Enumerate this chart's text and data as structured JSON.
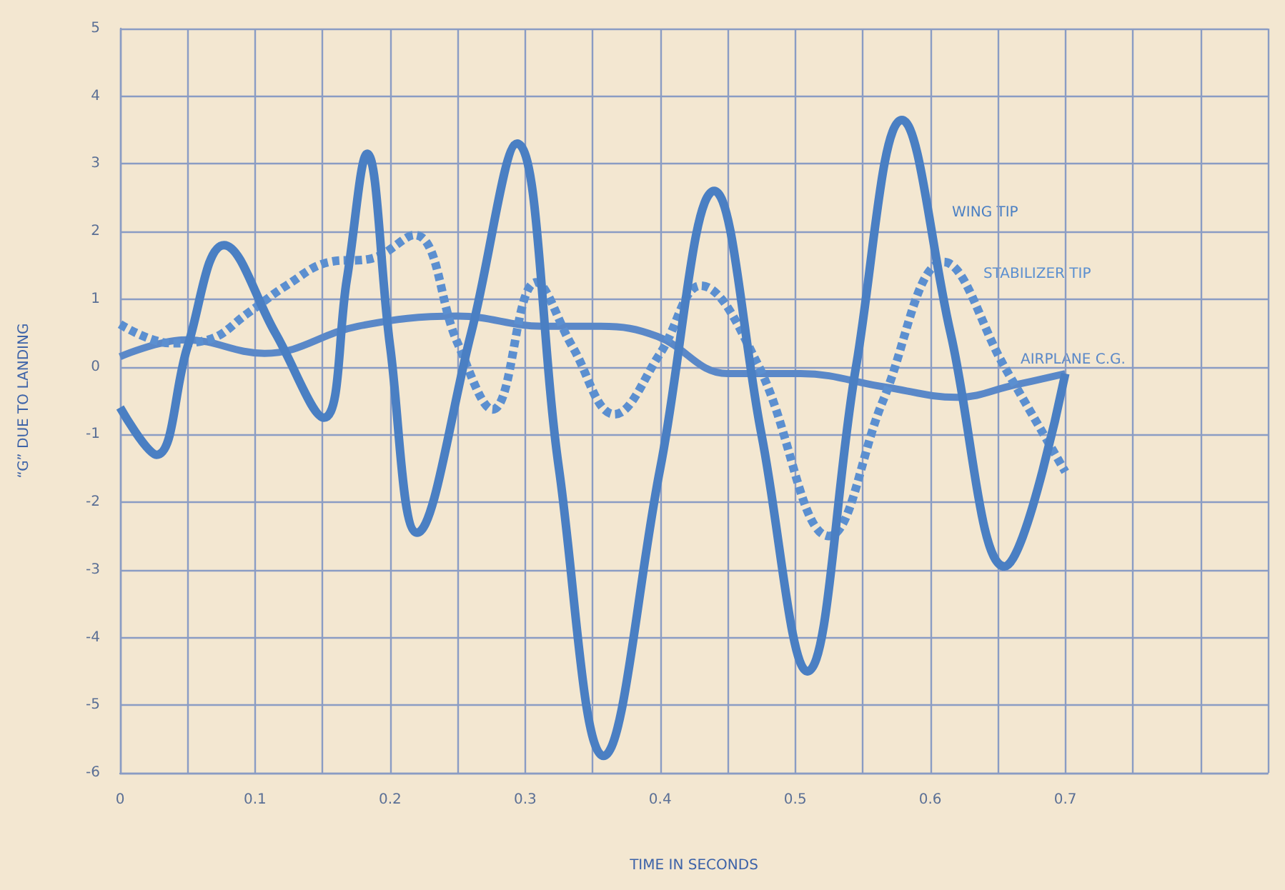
{
  "chart_data": {
    "type": "line",
    "xlabel": "TIME IN SECONDS",
    "ylabel": "“G” DUE TO LANDING",
    "xlim": [
      0,
      0.85
    ],
    "ylim": [
      -6,
      5
    ],
    "xticks": [
      0,
      {
        "value": 0.05,
        "label": null
      },
      0.1,
      {
        "value": 0.15,
        "label": null
      },
      0.2,
      {
        "value": 0.25,
        "label": null
      },
      0.3,
      {
        "value": 0.35,
        "label": null
      },
      0.4,
      {
        "value": 0.45,
        "label": null
      },
      0.5,
      {
        "value": 0.55,
        "label": null
      },
      0.6,
      {
        "value": 0.65,
        "label": null
      },
      0.7,
      {
        "value": 0.75,
        "label": null
      },
      {
        "value": 0.8,
        "label": null
      },
      {
        "value": 0.85,
        "label": null
      }
    ],
    "yticks": [
      -6,
      -5,
      -4,
      -3,
      -2,
      -1,
      0,
      1,
      2,
      3,
      4,
      5
    ],
    "grid": true,
    "legend": false,
    "marker": "none",
    "series": [
      {
        "name": "WING TIP",
        "color": "#4a7fc3",
        "line_style": "solid",
        "x": [
          0,
          0.027,
          0.05,
          0.077,
          0.115,
          0.151,
          0.168,
          0.183,
          0.2,
          0.22,
          0.26,
          0.294,
          0.325,
          0.358,
          0.4,
          0.44,
          0.475,
          0.509,
          0.545,
          0.579,
          0.615,
          0.655,
          0.7
        ],
        "values": [
          -0.6,
          -1.3,
          0.3,
          1.8,
          0.5,
          -0.75,
          1.3,
          3.15,
          0.3,
          -2.45,
          0.5,
          3.3,
          -1.5,
          -5.75,
          -1.5,
          2.6,
          -1.0,
          -4.5,
          0,
          3.65,
          0.5,
          -2.95,
          -0.1
        ]
      },
      {
        "name": "STABILIZER TIP",
        "color": "#5b8fd0",
        "line_style": "dashed",
        "x": [
          0,
          0.038,
          0.065,
          0.095,
          0.123,
          0.155,
          0.186,
          0.218,
          0.25,
          0.276,
          0.308,
          0.335,
          0.366,
          0.4,
          0.43,
          0.472,
          0.525,
          0.565,
          0.61,
          0.655,
          0.7
        ],
        "values": [
          0.63,
          0.35,
          0.4,
          0.8,
          1.2,
          1.55,
          1.6,
          1.95,
          0.35,
          -0.63,
          1.25,
          0.3,
          -0.7,
          0.2,
          1.2,
          0.05,
          -2.5,
          -0.5,
          1.55,
          0.0,
          -1.55
        ]
      },
      {
        "name": "AIRPLANE C.G.",
        "color": "#5a88c8",
        "line_style": "solid",
        "x": [
          0,
          0.049,
          0.107,
          0.176,
          0.25,
          0.313,
          0.356,
          0.398,
          0.45,
          0.504,
          0.567,
          0.62,
          0.662,
          0.7
        ],
        "values": [
          0.15,
          0.4,
          0.2,
          0.6,
          0.75,
          0.6,
          0.6,
          0.45,
          -0.1,
          -0.1,
          -0.3,
          -0.45,
          -0.27,
          -0.1
        ]
      }
    ]
  }
}
